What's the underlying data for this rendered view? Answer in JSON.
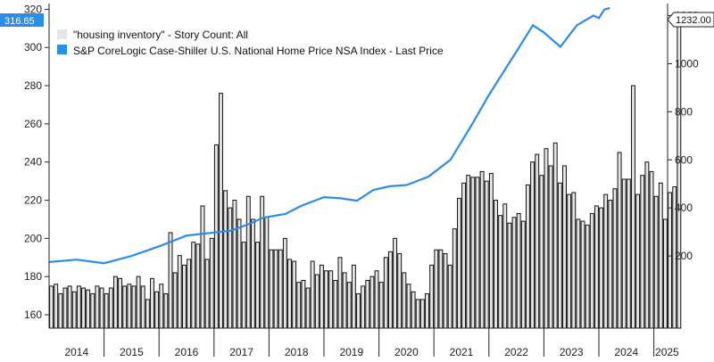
{
  "chart_data": {
    "type": "bar",
    "title": "",
    "xlabel": "",
    "left_axis": {
      "ylim": [
        153,
        323
      ],
      "ticks": [
        160,
        180,
        200,
        220,
        240,
        260,
        280,
        300,
        320
      ]
    },
    "right_axis": {
      "ylim": [
        -100,
        1250
      ],
      "ticks": [
        200,
        400,
        600,
        800,
        1000,
        1200
      ]
    },
    "x_axis": {
      "start": 2014.0,
      "end": 2025.25,
      "ticks": [
        "2014",
        "2015",
        "2016",
        "2017",
        "2018",
        "2019",
        "2020",
        "2021",
        "2022",
        "2023",
        "2024",
        "2025"
      ]
    },
    "grid": false,
    "legend_placement": "top-left",
    "series": [
      {
        "name": "\"housing inventory\" - Story Count: All",
        "type": "bar",
        "axis": "left",
        "color": "#e6e6e6",
        "frequency": "monthly",
        "start": "2014-01",
        "values": [
          175,
          176,
          171,
          174,
          175,
          172,
          175,
          174,
          173,
          171,
          175,
          174,
          171,
          174,
          180,
          179,
          175,
          176,
          175,
          180,
          175,
          168,
          179,
          172,
          176,
          171,
          203,
          182,
          191,
          186,
          189,
          198,
          197,
          217,
          189,
          200,
          249,
          276,
          225,
          216,
          220,
          210,
          198,
          222,
          210,
          198,
          222,
          211,
          194,
          194,
          194,
          200,
          189,
          188,
          177,
          178,
          174,
          188,
          181,
          186,
          183,
          183,
          178,
          190,
          182,
          177,
          186,
          171,
          175,
          178,
          180,
          183,
          177,
          190,
          193,
          200,
          192,
          182,
          176,
          172,
          168,
          168,
          171,
          186,
          194,
          194,
          192,
          186,
          205,
          221,
          229,
          233,
          232,
          232,
          235,
          230,
          234,
          220,
          212,
          218,
          208,
          211,
          213,
          209,
          228,
          240,
          244,
          233,
          247,
          238,
          250,
          229,
          238,
          223,
          224,
          210,
          209,
          207,
          213,
          217,
          216,
          223,
          220,
          226,
          245,
          231,
          231,
          280,
          223,
          233,
          240,
          235,
          222,
          229,
          210,
          224,
          227,
          317
        ],
        "flag": "316.65"
      },
      {
        "name": "S&P CoreLogic Case-Shiller U.S. National Home Price NSA Index - Last Price",
        "type": "line",
        "axis": "right",
        "color": "#2b8de8",
        "x": [
          2014.0,
          2014.5,
          2015.0,
          2015.5,
          2016.0,
          2016.5,
          2016.9,
          2017.3,
          2017.6,
          2017.9,
          2018.3,
          2018.6,
          2019.0,
          2019.3,
          2019.6,
          2019.9,
          2020.2,
          2020.5,
          2020.9,
          2021.3,
          2021.7,
          2022.0,
          2022.25,
          2022.5,
          2022.8,
          2023.0,
          2023.3,
          2023.6,
          2023.9,
          2024.0,
          2024.1,
          2024.2
        ],
        "values": [
          175,
          185,
          170,
          200,
          240,
          285,
          295,
          305,
          330,
          360,
          375,
          410,
          445,
          440,
          430,
          475,
          490,
          495,
          530,
          600,
          750,
          870,
          960,
          1050,
          1160,
          1130,
          1070,
          1160,
          1200,
          1190,
          1225,
          1232
        ],
        "flag": "1232.00"
      }
    ]
  }
}
